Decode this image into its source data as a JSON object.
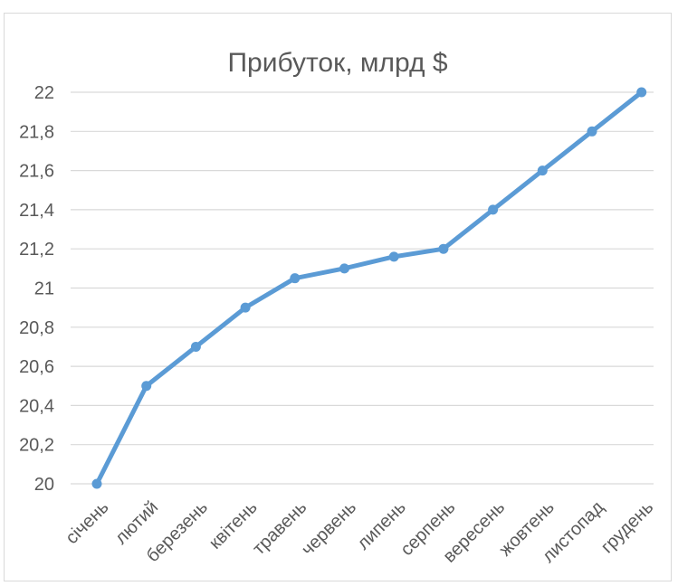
{
  "chart_data": {
    "type": "line",
    "title": "Прибуток, млрд $",
    "categories": [
      "січень",
      "лютий",
      "березень",
      "квітень",
      "травень",
      "червень",
      "липень",
      "серпень",
      "вересень",
      "жовтень",
      "листопад",
      "грудень"
    ],
    "series": [
      {
        "values": [
          20.0,
          20.5,
          20.7,
          20.9,
          21.05,
          21.1,
          21.16,
          21.2,
          21.4,
          21.6,
          21.8,
          22.0
        ]
      }
    ],
    "ylim": [
      20,
      22
    ],
    "y_ticks": [
      "20",
      "20,2",
      "20,4",
      "20,6",
      "20,8",
      "21",
      "21,2",
      "21,4",
      "21,6",
      "21,8",
      "22"
    ],
    "grid": true,
    "legend": "none",
    "line_color": "#5b9bd5",
    "grid_color": "#d9d9d9",
    "text_color": "#595959"
  }
}
